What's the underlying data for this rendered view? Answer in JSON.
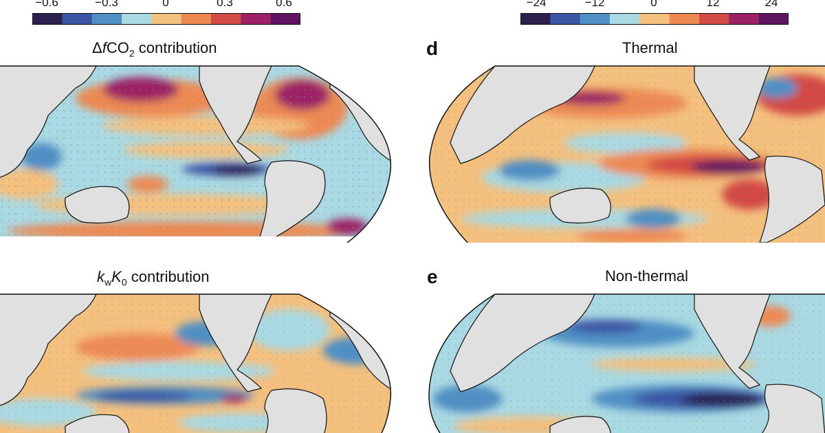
{
  "colorbar_left": {
    "ticks": [
      "−0.6",
      "−0.3",
      "0",
      "0.3",
      "0.6"
    ],
    "colors": [
      "#2a1f4d",
      "#3a55a4",
      "#4f8fc4",
      "#a9d9e3",
      "#f4c07e",
      "#ed8a52",
      "#d24a45",
      "#9c2165",
      "#5e1461"
    ]
  },
  "colorbar_right": {
    "ticks": [
      "−24",
      "−12",
      "0",
      "12",
      "24"
    ],
    "colors": [
      "#2a1f4d",
      "#3a55a4",
      "#4f8fc4",
      "#a9d9e3",
      "#f4c07e",
      "#ed8a52",
      "#d24a45",
      "#9c2165",
      "#5e1461"
    ]
  },
  "panels": {
    "c": {
      "title_prefix": "Δ",
      "title_var": "f",
      "title_main": "CO",
      "title_sub": "2",
      "title_suffix": " contribution"
    },
    "d": {
      "letter": "d",
      "title": "Thermal"
    },
    "f": {
      "var1": "k",
      "sub1": "w",
      "var2": "K",
      "sub2": "0",
      "title_suffix": " contribution"
    },
    "e": {
      "letter": "e",
      "title": "Non-thermal"
    }
  }
}
